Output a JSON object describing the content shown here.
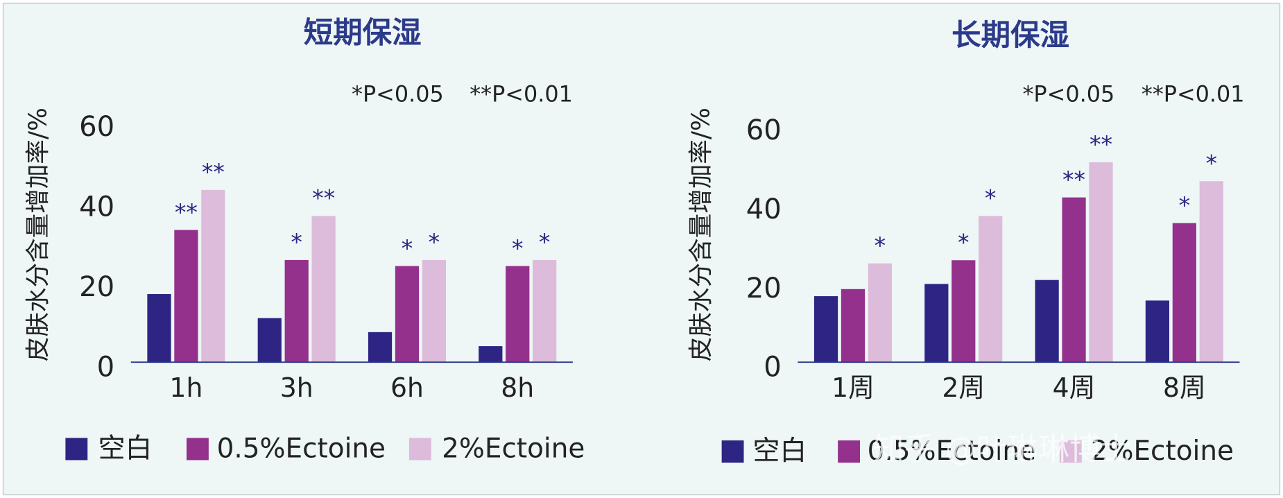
{
  "chart_data": [
    {
      "type": "bar",
      "title": "短期保湿",
      "y_label": "皮肤水分含量增加率/%",
      "notes": [
        "*P<0.05",
        "**P<0.01"
      ],
      "categories": [
        "1h",
        "3h",
        "6h",
        "8h"
      ],
      "series": [
        {
          "name": "空白",
          "color": "#2e2483",
          "values": [
            17,
            11,
            7.5,
            4
          ],
          "significance": [
            null,
            null,
            null,
            null
          ]
        },
        {
          "name": "0.5%Ectoine",
          "color": "#93318c",
          "values": [
            33,
            25.5,
            24,
            24
          ],
          "significance": [
            "**",
            "*",
            "*",
            "*"
          ]
        },
        {
          "name": "2%Ectoine",
          "color": "#dcbcda",
          "values": [
            43,
            36.5,
            25.5,
            25.5
          ],
          "significance": [
            "**",
            "**",
            "*",
            "*"
          ]
        }
      ],
      "ylim": [
        0,
        60
      ],
      "yticks": [
        0,
        20,
        40,
        60
      ],
      "grid": false
    },
    {
      "type": "bar",
      "title": "长期保湿",
      "y_label": "皮肤水分含量增加率/%",
      "notes": [
        "*P<0.05",
        "**P<0.01"
      ],
      "categories": [
        "1周",
        "2周",
        "4周",
        "8周"
      ],
      "series": [
        {
          "name": "空白",
          "color": "#2e2483",
          "values": [
            16.7,
            19.8,
            20.8,
            15.6
          ],
          "significance": [
            null,
            null,
            null,
            null
          ]
        },
        {
          "name": "0.5%Ectoine",
          "color": "#93318c",
          "values": [
            18.5,
            25.8,
            41.7,
            35.2
          ],
          "significance": [
            null,
            "*",
            "**",
            "*"
          ]
        },
        {
          "name": "2%Ectoine",
          "color": "#dcbcda",
          "values": [
            25,
            37,
            50.6,
            45.8
          ],
          "significance": [
            "*",
            "*",
            "**",
            "*"
          ]
        }
      ],
      "ylim": [
        0,
        60
      ],
      "yticks": [
        0,
        20,
        40,
        60
      ],
      "grid": false
    }
  ],
  "watermark": "知乎 @叶琳琳博士"
}
